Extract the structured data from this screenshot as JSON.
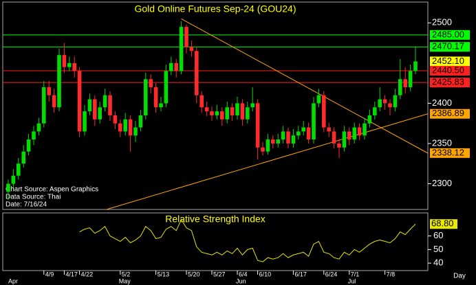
{
  "chart_data": [
    {
      "type": "candlestick",
      "title": "Gold Online Futures Sep-24 (GOU24)",
      "x_label": "Day",
      "categories": [
        null,
        null,
        null,
        null,
        null,
        null,
        null,
        "4/9",
        null,
        null,
        null,
        "4/17",
        null,
        null,
        "4/22",
        null,
        null,
        null,
        null,
        null,
        null,
        null,
        "5/2",
        null,
        null,
        null,
        null,
        null,
        null,
        "5/13",
        null,
        null,
        null,
        null,
        null,
        "5/20",
        null,
        null,
        null,
        null,
        "5/27",
        null,
        null,
        null,
        null,
        "6/4",
        null,
        null,
        null,
        "6/10",
        null,
        null,
        null,
        null,
        null,
        null,
        "6/17",
        null,
        null,
        null,
        null,
        null,
        "6/24",
        null,
        null,
        null,
        null,
        "7/1",
        null,
        null,
        null,
        null,
        null,
        null,
        "7/8",
        null,
        null,
        null,
        null,
        null,
        null
      ],
      "months": [
        "Apr",
        null,
        null,
        null,
        null,
        null,
        null,
        null,
        null,
        null,
        null,
        null,
        null,
        null,
        null,
        null,
        null,
        null,
        null,
        null,
        null,
        null,
        "May",
        null,
        null,
        null,
        null,
        null,
        null,
        null,
        null,
        null,
        null,
        null,
        null,
        null,
        null,
        null,
        null,
        null,
        null,
        null,
        null,
        null,
        null,
        "Jun",
        null,
        null,
        null,
        null,
        null,
        null,
        null,
        null,
        null,
        null,
        null,
        null,
        null,
        null,
        null,
        null,
        null,
        null,
        null,
        null,
        null,
        "Jul",
        null,
        null,
        null,
        null,
        null,
        null,
        null,
        null,
        null,
        null,
        null,
        null,
        null
      ],
      "open": [
        2290,
        2300,
        2310,
        2325,
        2340,
        2355,
        2365,
        2375,
        2420,
        2410,
        2395,
        2460,
        2445,
        2450,
        2440,
        2365,
        2390,
        2405,
        2380,
        2395,
        2410,
        2385,
        2375,
        2365,
        2380,
        2360,
        2370,
        2385,
        2430,
        2420,
        2395,
        2400,
        2440,
        2450,
        2440,
        2495,
        2470,
        2465,
        2410,
        2395,
        2390,
        2385,
        2390,
        2380,
        2395,
        2385,
        2400,
        2380,
        2395,
        2400,
        2345,
        2340,
        2355,
        2350,
        2355,
        2365,
        2350,
        2360,
        2365,
        2370,
        2355,
        2400,
        2410,
        2370,
        2365,
        2350,
        2345,
        2365,
        2355,
        2370,
        2360,
        2375,
        2385,
        2395,
        2405,
        2400,
        2395,
        2410,
        2430,
        2420,
        2440
      ],
      "high": [
        2305,
        2318,
        2332,
        2348,
        2362,
        2372,
        2382,
        2428,
        2428,
        2418,
        2468,
        2475,
        2458,
        2458,
        2445,
        2398,
        2412,
        2410,
        2402,
        2418,
        2415,
        2390,
        2380,
        2388,
        2385,
        2378,
        2392,
        2438,
        2436,
        2425,
        2408,
        2448,
        2458,
        2455,
        2502,
        2498,
        2478,
        2470,
        2415,
        2402,
        2396,
        2398,
        2395,
        2402,
        2400,
        2408,
        2405,
        2402,
        2420,
        2405,
        2352,
        2362,
        2360,
        2362,
        2372,
        2370,
        2368,
        2372,
        2378,
        2376,
        2408,
        2418,
        2415,
        2376,
        2370,
        2356,
        2372,
        2370,
        2376,
        2375,
        2382,
        2392,
        2402,
        2420,
        2410,
        2405,
        2418,
        2455,
        2445,
        2448,
        2470
      ],
      "low": [
        2280,
        2295,
        2305,
        2320,
        2335,
        2348,
        2360,
        2370,
        2402,
        2388,
        2390,
        2438,
        2440,
        2432,
        2358,
        2360,
        2385,
        2372,
        2375,
        2390,
        2378,
        2368,
        2358,
        2360,
        2340,
        2352,
        2365,
        2380,
        2412,
        2388,
        2390,
        2395,
        2435,
        2432,
        2436,
        2462,
        2458,
        2400,
        2388,
        2384,
        2378,
        2380,
        2372,
        2375,
        2378,
        2380,
        2372,
        2375,
        2390,
        2330,
        2335,
        2336,
        2344,
        2345,
        2350,
        2344,
        2345,
        2355,
        2360,
        2350,
        2350,
        2395,
        2364,
        2358,
        2344,
        2332,
        2340,
        2348,
        2350,
        2354,
        2355,
        2370,
        2380,
        2390,
        2392,
        2385,
        2390,
        2405,
        2412,
        2415,
        2436
      ],
      "close": [
        2300,
        2310,
        2325,
        2340,
        2355,
        2365,
        2375,
        2420,
        2410,
        2395,
        2460,
        2445,
        2450,
        2440,
        2365,
        2390,
        2405,
        2380,
        2395,
        2410,
        2385,
        2375,
        2365,
        2380,
        2360,
        2370,
        2385,
        2430,
        2420,
        2395,
        2400,
        2440,
        2450,
        2440,
        2495,
        2470,
        2465,
        2410,
        2395,
        2390,
        2385,
        2390,
        2380,
        2395,
        2385,
        2400,
        2380,
        2395,
        2400,
        2345,
        2340,
        2355,
        2350,
        2355,
        2365,
        2350,
        2360,
        2365,
        2370,
        2355,
        2400,
        2410,
        2370,
        2365,
        2350,
        2345,
        2365,
        2355,
        2370,
        2360,
        2375,
        2385,
        2395,
        2405,
        2400,
        2395,
        2410,
        2430,
        2420,
        2440,
        2452.1
      ],
      "up_color": "#00dd00",
      "down_color": "#ff2a2a",
      "ylim": [
        2268,
        2525
      ],
      "yticks": [
        2300,
        2350,
        2400,
        2500
      ],
      "levels": [
        {
          "value": 2485,
          "label": "2485.00",
          "color": "#00ff00",
          "line": true
        },
        {
          "value": 2470.17,
          "label": "2470.17",
          "color": "#00ff00",
          "line": true
        },
        {
          "value": 2452.1,
          "label": "2452.10",
          "color": "#ffff00",
          "line": false
        },
        {
          "value": 2440.5,
          "label": "2440.50",
          "color": "#ff2020",
          "line": true
        },
        {
          "value": 2425.83,
          "label": "2425.83",
          "color": "#ff2020",
          "line": true
        },
        {
          "value": 2386.89,
          "label": "2386.89",
          "color": "#ffa500",
          "line": false
        },
        {
          "value": 2338.12,
          "label": "2338.12",
          "color": "#ffa500",
          "line": false
        }
      ],
      "trendlines": [
        {
          "x": [
            34,
            82.4
          ],
          "y": [
            2505,
            2338.12
          ],
          "color": "#ffa500"
        },
        {
          "x": [
            19.3,
            82.4
          ],
          "y": [
            2268,
            2386.89
          ],
          "color": "#ffa500"
        }
      ],
      "annotations": [
        "Chart Source: Aspen Graphics",
        "Data Source: Thai",
        "Date: 7/16/24"
      ]
    },
    {
      "type": "line",
      "title": "Relative Strength Index",
      "color": "#e8e800",
      "values": [
        null,
        null,
        null,
        null,
        null,
        null,
        null,
        null,
        null,
        null,
        null,
        null,
        null,
        null,
        63,
        65,
        66,
        62,
        64,
        67,
        60,
        58,
        56,
        59,
        55,
        57,
        60,
        67,
        64,
        58,
        59,
        65,
        67,
        64,
        72,
        66,
        64,
        52,
        48,
        47,
        46,
        48,
        46,
        49,
        47,
        51,
        46,
        50,
        51,
        42,
        41,
        44,
        43,
        44,
        47,
        44,
        46,
        47,
        48,
        45,
        54,
        56,
        48,
        47,
        44,
        43,
        48,
        46,
        50,
        48,
        51,
        54,
        56,
        57,
        56,
        55,
        58,
        63,
        61,
        65,
        68.8
      ],
      "last": {
        "value": 68.8,
        "label": "68.80"
      },
      "ylim": [
        35,
        76
      ],
      "yticks": [
        40,
        50,
        60
      ]
    }
  ]
}
